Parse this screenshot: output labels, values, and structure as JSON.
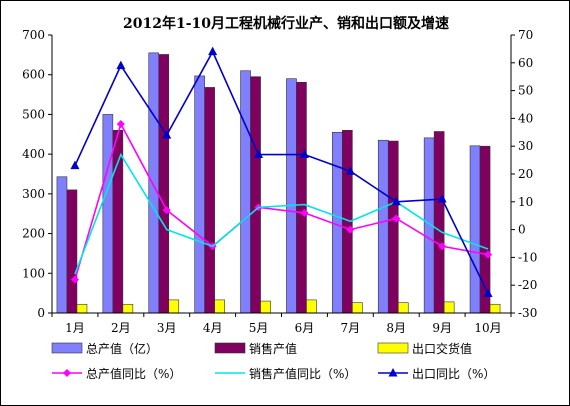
{
  "chart_data": {
    "type": "bar",
    "title": "2012年1-10月工程机械行业产、销和出口额及增速",
    "categories": [
      "1月",
      "2月",
      "3月",
      "4月",
      "5月",
      "6月",
      "7月",
      "8月",
      "9月",
      "10月"
    ],
    "ylim_left": [
      0,
      700
    ],
    "ylim_right": [
      -30,
      70
    ],
    "left_ticks": [
      "0",
      "100",
      "200",
      "300",
      "400",
      "500",
      "600",
      "700"
    ],
    "right_ticks": [
      "-30",
      "-20",
      "-10",
      "0",
      "10",
      "20",
      "30",
      "40",
      "50",
      "60",
      "70"
    ],
    "grid": false,
    "legend_position": "bottom",
    "bar_series": [
      {
        "name": "总产值（亿）",
        "color": "#8080ff",
        "values": [
          343,
          500,
          655,
          597,
          610,
          590,
          455,
          435,
          441,
          421
        ]
      },
      {
        "name": "销售产值",
        "color": "#800060",
        "values": [
          310,
          460,
          651,
          568,
          595,
          581,
          460,
          433,
          457,
          420
        ]
      },
      {
        "name": "出口交货值",
        "color": "#ffff00",
        "values": [
          22,
          22,
          33,
          33,
          30,
          33,
          26,
          26,
          28,
          22
        ]
      }
    ],
    "line_series": [
      {
        "name": "总产值同比（%）",
        "color": "#ff00ff",
        "marker": "diamond",
        "values": [
          -18,
          38,
          7,
          -6,
          8,
          6,
          0,
          4,
          -6,
          -9
        ]
      },
      {
        "name": "销售产值同比（%）",
        "color": "#00e5e5",
        "marker": "none",
        "values": [
          -16,
          27,
          0,
          -6,
          8,
          9,
          3,
          10,
          -1,
          -7
        ]
      },
      {
        "name": "出口同比（%）",
        "color": "#0000cc",
        "marker": "triangle",
        "values": [
          23,
          59,
          34,
          64,
          27,
          27,
          21,
          10,
          11,
          -23
        ]
      }
    ]
  }
}
